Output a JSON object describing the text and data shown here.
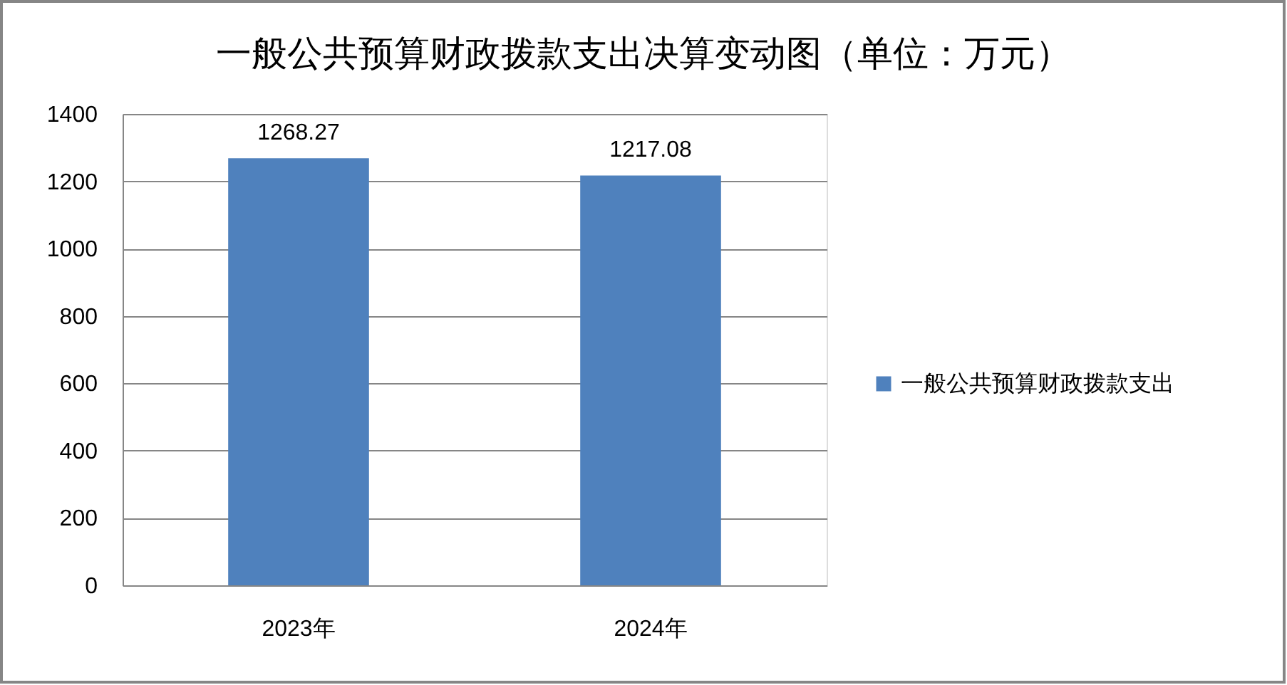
{
  "chart_data": {
    "type": "bar",
    "title": "一般公共预算财政拨款支出决算变动图（单位：万元）",
    "categories": [
      "2023年",
      "2024年"
    ],
    "series": [
      {
        "name": "一般公共预算财政拨款支出",
        "color": "#4f81bd",
        "values": [
          1268.27,
          1217.08
        ]
      }
    ],
    "ylim": [
      0,
      1400
    ],
    "yticks": [
      0,
      200,
      400,
      600,
      800,
      1000,
      1200,
      1400
    ],
    "grid": "y",
    "legend": "right",
    "data_labels": true
  }
}
